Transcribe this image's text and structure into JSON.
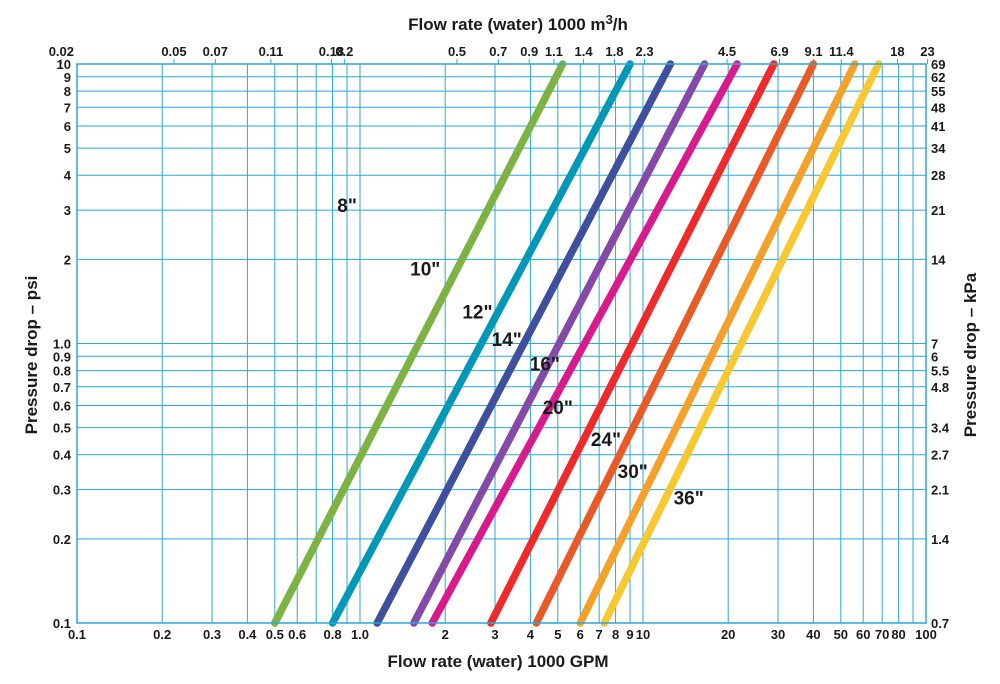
{
  "chart_data": {
    "type": "line",
    "title": "",
    "xlabel": "Flow rate (water) 1000 GPM",
    "ylabel": "Pressure drop – psi",
    "x2label": "Flow rate (water) 1000 m3/h",
    "y2label": "Pressure drop – kPa",
    "x_scale": "log",
    "y_scale": "log",
    "xlim": [
      0.1,
      100
    ],
    "ylim": [
      0.1,
      10
    ],
    "grid": true,
    "x_ticks": [
      {
        "value": 0.1,
        "label": "0.1"
      },
      {
        "value": 0.2,
        "label": "0.2"
      },
      {
        "value": 0.3,
        "label": "0.3"
      },
      {
        "value": 0.4,
        "label": "0.4"
      },
      {
        "value": 0.5,
        "label": "0.5"
      },
      {
        "value": 0.6,
        "label": "0.6"
      },
      {
        "value": 0.8,
        "label": "0.8"
      },
      {
        "value": 1.0,
        "label": "1.0"
      },
      {
        "value": 2,
        "label": "2"
      },
      {
        "value": 3,
        "label": "3"
      },
      {
        "value": 4,
        "label": "4"
      },
      {
        "value": 5,
        "label": "5"
      },
      {
        "value": 6,
        "label": "6"
      },
      {
        "value": 7,
        "label": "7"
      },
      {
        "value": 8,
        "label": "8"
      },
      {
        "value": 9,
        "label": "9"
      },
      {
        "value": 10,
        "label": "10"
      },
      {
        "value": 20,
        "label": "20"
      },
      {
        "value": 30,
        "label": "30"
      },
      {
        "value": 40,
        "label": "40"
      },
      {
        "value": 50,
        "label": "50"
      },
      {
        "value": 60,
        "label": "60"
      },
      {
        "value": 70,
        "label": "70"
      },
      {
        "value": 80,
        "label": "80"
      },
      {
        "value": 100,
        "label": "100"
      }
    ],
    "x2_ticks": [
      {
        "value": 0.02,
        "label": "0.02"
      },
      {
        "value": 0.05,
        "label": "0.05"
      },
      {
        "value": 0.07,
        "label": "0.07"
      },
      {
        "value": 0.11,
        "label": "0.11"
      },
      {
        "value": 0.18,
        "label": "0.18"
      },
      {
        "value": 0.2,
        "label": "0.2"
      },
      {
        "value": 0.5,
        "label": "0.5"
      },
      {
        "value": 0.7,
        "label": "0.7"
      },
      {
        "value": 0.9,
        "label": "0.9"
      },
      {
        "value": 1.1,
        "label": "1.1"
      },
      {
        "value": 1.4,
        "label": "1.4"
      },
      {
        "value": 1.8,
        "label": "1.8"
      },
      {
        "value": 2.3,
        "label": "2.3"
      },
      {
        "value": 4.5,
        "label": "4.5"
      },
      {
        "value": 6.9,
        "label": "6.9"
      },
      {
        "value": 9.1,
        "label": "9.1"
      },
      {
        "value": 11.4,
        "label": "11.4"
      },
      {
        "value": 18,
        "label": "18"
      },
      {
        "value": 23,
        "label": "23"
      }
    ],
    "y_ticks": [
      {
        "value": 0.1,
        "label": "0.1"
      },
      {
        "value": 0.2,
        "label": "0.2"
      },
      {
        "value": 0.3,
        "label": "0.3"
      },
      {
        "value": 0.4,
        "label": "0.4"
      },
      {
        "value": 0.5,
        "label": "0.5"
      },
      {
        "value": 0.6,
        "label": "0.6"
      },
      {
        "value": 0.7,
        "label": "0.7"
      },
      {
        "value": 0.8,
        "label": "0.8"
      },
      {
        "value": 0.9,
        "label": "0.9"
      },
      {
        "value": 1.0,
        "label": "1.0"
      },
      {
        "value": 2,
        "label": "2"
      },
      {
        "value": 3,
        "label": "3"
      },
      {
        "value": 4,
        "label": "4"
      },
      {
        "value": 5,
        "label": "5"
      },
      {
        "value": 6,
        "label": "6"
      },
      {
        "value": 7,
        "label": "7"
      },
      {
        "value": 8,
        "label": "8"
      },
      {
        "value": 9,
        "label": "9"
      },
      {
        "value": 10,
        "label": "10"
      }
    ],
    "y2_ticks": [
      {
        "value": 0.1,
        "label": "0.7"
      },
      {
        "value": 0.2,
        "label": "1.4"
      },
      {
        "value": 0.3,
        "label": "2.1"
      },
      {
        "value": 0.4,
        "label": "2.7"
      },
      {
        "value": 0.5,
        "label": "3.4"
      },
      {
        "value": 0.7,
        "label": "4.8"
      },
      {
        "value": 0.8,
        "label": "5.5"
      },
      {
        "value": 0.9,
        "label": "6"
      },
      {
        "value": 1.0,
        "label": "7"
      },
      {
        "value": 2,
        "label": "14"
      },
      {
        "value": 3,
        "label": "21"
      },
      {
        "value": 4,
        "label": "28"
      },
      {
        "value": 5,
        "label": "34"
      },
      {
        "value": 6,
        "label": "41"
      },
      {
        "value": 7,
        "label": "48"
      },
      {
        "value": 8,
        "label": "55"
      },
      {
        "value": 9,
        "label": "62"
      },
      {
        "value": 10,
        "label": "69"
      }
    ],
    "series": [
      {
        "name": "8\"",
        "color": "#7cb342",
        "x": [
          0.5,
          5.2
        ],
        "y": [
          0.1,
          10
        ],
        "label_at": [
          0.9,
          2.95
        ]
      },
      {
        "name": "10\"",
        "color": "#0098b6",
        "x": [
          0.8,
          9.0
        ],
        "y": [
          0.1,
          10
        ],
        "label_at": [
          1.7,
          1.75
        ]
      },
      {
        "name": "12\"",
        "color": "#3e4f9e",
        "x": [
          1.15,
          12.5
        ],
        "y": [
          0.1,
          10
        ],
        "label_at": [
          2.6,
          1.23
        ]
      },
      {
        "name": "14\"",
        "color": "#8549a8",
        "x": [
          1.55,
          16.5
        ],
        "y": [
          0.1,
          10
        ],
        "label_at": [
          3.3,
          0.98
        ]
      },
      {
        "name": "16\"",
        "color": "#d81b8c",
        "x": [
          1.8,
          21.5
        ],
        "y": [
          0.1,
          10
        ],
        "label_at": [
          4.5,
          0.8
        ]
      },
      {
        "name": "20\"",
        "color": "#ee2a2a",
        "x": [
          2.9,
          29.0
        ],
        "y": [
          0.1,
          10
        ],
        "label_at": [
          5.0,
          0.56
        ]
      },
      {
        "name": "24\"",
        "color": "#e85a28",
        "x": [
          4.2,
          40.0
        ],
        "y": [
          0.1,
          10
        ],
        "label_at": [
          7.4,
          0.43
        ]
      },
      {
        "name": "30\"",
        "color": "#f4a12b",
        "x": [
          6.0,
          56.0
        ],
        "y": [
          0.1,
          10
        ],
        "label_at": [
          9.2,
          0.33
        ]
      },
      {
        "name": "36\"",
        "color": "#f7c832",
        "x": [
          7.3,
          68.0
        ],
        "y": [
          0.1,
          10
        ],
        "label_at": [
          14.5,
          0.265
        ]
      }
    ]
  }
}
